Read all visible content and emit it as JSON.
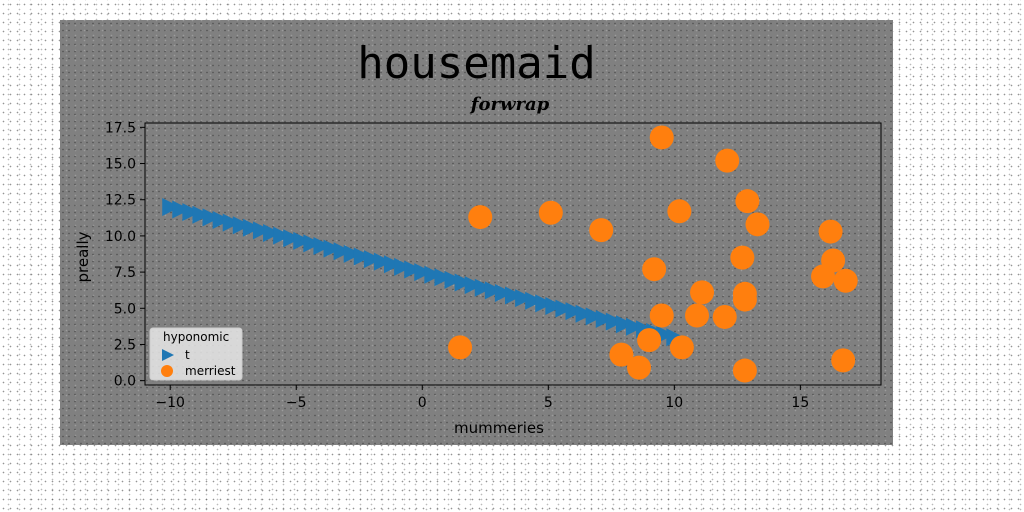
{
  "figure": {
    "suptitle": "housemaid"
  },
  "chart_data": {
    "type": "scatter",
    "title": "forwrap",
    "xlabel": "mummeries",
    "ylabel": "preally",
    "xlim": [
      -11,
      18.2
    ],
    "ylim": [
      -0.3,
      17.8
    ],
    "xticks": [
      -10,
      -5,
      0,
      5,
      10,
      15
    ],
    "xtick_labels": [
      "−10",
      "−5",
      "0",
      "5",
      "10",
      "15"
    ],
    "yticks": [
      0.0,
      2.5,
      5.0,
      7.5,
      10.0,
      12.5,
      15.0,
      17.5
    ],
    "ytick_labels": [
      "0.0",
      "2.5",
      "5.0",
      "7.5",
      "10.0",
      "12.5",
      "15.0",
      "17.5"
    ],
    "grid": false,
    "legend": {
      "title": "hyponomic",
      "placement": "lower-left"
    },
    "series": [
      {
        "name": "t",
        "marker": "triangle-right",
        "color": "#1f77b4",
        "x": [
          -10.0,
          -9.6,
          -9.2,
          -8.8,
          -8.4,
          -8.0,
          -7.6,
          -7.2,
          -6.8,
          -6.4,
          -6.0,
          -5.6,
          -5.2,
          -4.8,
          -4.4,
          -4.0,
          -3.6,
          -3.2,
          -2.8,
          -2.4,
          -2.0,
          -1.6,
          -1.2,
          -0.8,
          -0.4,
          0.0,
          0.4,
          0.8,
          1.2,
          1.6,
          2.0,
          2.4,
          2.8,
          3.2,
          3.6,
          4.0,
          4.4,
          4.8,
          5.2,
          5.6,
          6.0,
          6.4,
          6.8,
          7.2,
          7.6,
          8.0,
          8.4,
          8.8,
          9.2,
          9.6,
          10.0
        ],
        "y": [
          12.0,
          11.82,
          11.64,
          11.46,
          11.28,
          11.1,
          10.92,
          10.74,
          10.56,
          10.38,
          10.2,
          10.02,
          9.84,
          9.66,
          9.48,
          9.3,
          9.12,
          8.94,
          8.76,
          8.58,
          8.4,
          8.22,
          8.04,
          7.86,
          7.68,
          7.5,
          7.32,
          7.14,
          6.96,
          6.78,
          6.6,
          6.42,
          6.24,
          6.06,
          5.88,
          5.7,
          5.52,
          5.34,
          5.16,
          4.98,
          4.8,
          4.62,
          4.44,
          4.26,
          4.08,
          3.9,
          3.72,
          3.54,
          3.36,
          3.18,
          3.0
        ]
      },
      {
        "name": "merriest",
        "marker": "circle",
        "color": "#ff7f0e",
        "x": [
          9.5,
          12.1,
          12.9,
          13.3,
          2.3,
          5.1,
          7.1,
          10.2,
          9.2,
          12.7,
          16.2,
          16.3,
          15.9,
          16.8,
          11.1,
          12.8,
          12.8,
          9.5,
          10.9,
          12.0,
          9.0,
          10.3,
          1.5,
          7.9,
          8.6,
          12.8,
          16.7
        ],
        "y": [
          16.8,
          15.2,
          12.4,
          10.8,
          11.3,
          11.6,
          10.4,
          11.7,
          7.7,
          8.5,
          10.3,
          8.3,
          7.2,
          6.9,
          6.1,
          6.0,
          5.6,
          4.5,
          4.5,
          4.4,
          2.8,
          2.3,
          2.3,
          1.8,
          0.9,
          0.7,
          1.4
        ]
      }
    ]
  }
}
